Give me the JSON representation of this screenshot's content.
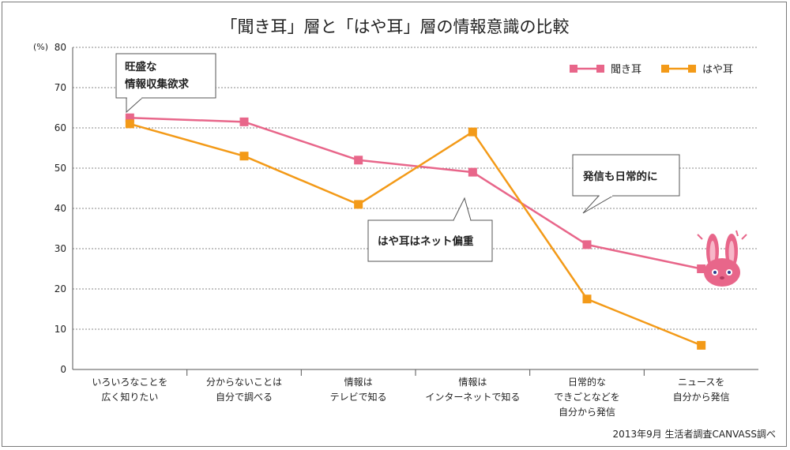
{
  "chart_data": {
    "type": "line",
    "title": "「聞き耳」層と「はや耳」層の情報意識の比較",
    "ylabel": "(%)",
    "ylim": [
      0,
      80
    ],
    "yticks": [
      0,
      10,
      20,
      30,
      40,
      50,
      60,
      70,
      80
    ],
    "grid": true,
    "legend": "top-right",
    "categories": [
      [
        "いろいろなことを",
        "広く知りたい"
      ],
      [
        "分からないことは",
        "自分で調べる"
      ],
      [
        "情報は",
        "テレビで知る"
      ],
      [
        "情報は",
        "インターネットで知る"
      ],
      [
        "日常的な",
        "できごとなどを",
        "自分から発信"
      ],
      [
        "ニュースを",
        "自分から発信"
      ]
    ],
    "series": [
      {
        "name": "聞き耳",
        "color": "#e8668a",
        "values": [
          62.5,
          61.5,
          52,
          49,
          31,
          25
        ]
      },
      {
        "name": "はや耳",
        "color": "#f39a18",
        "values": [
          61,
          53,
          41,
          59,
          17.5,
          6
        ]
      }
    ],
    "annotations": [
      {
        "lines": [
          "旺盛な",
          "情報収集欲求"
        ]
      },
      {
        "lines": [
          "はや耳はネット偏重"
        ]
      },
      {
        "lines": [
          "発信も日常的に"
        ]
      }
    ],
    "source": "2013年9月 生活者調査CANVASS調べ"
  }
}
